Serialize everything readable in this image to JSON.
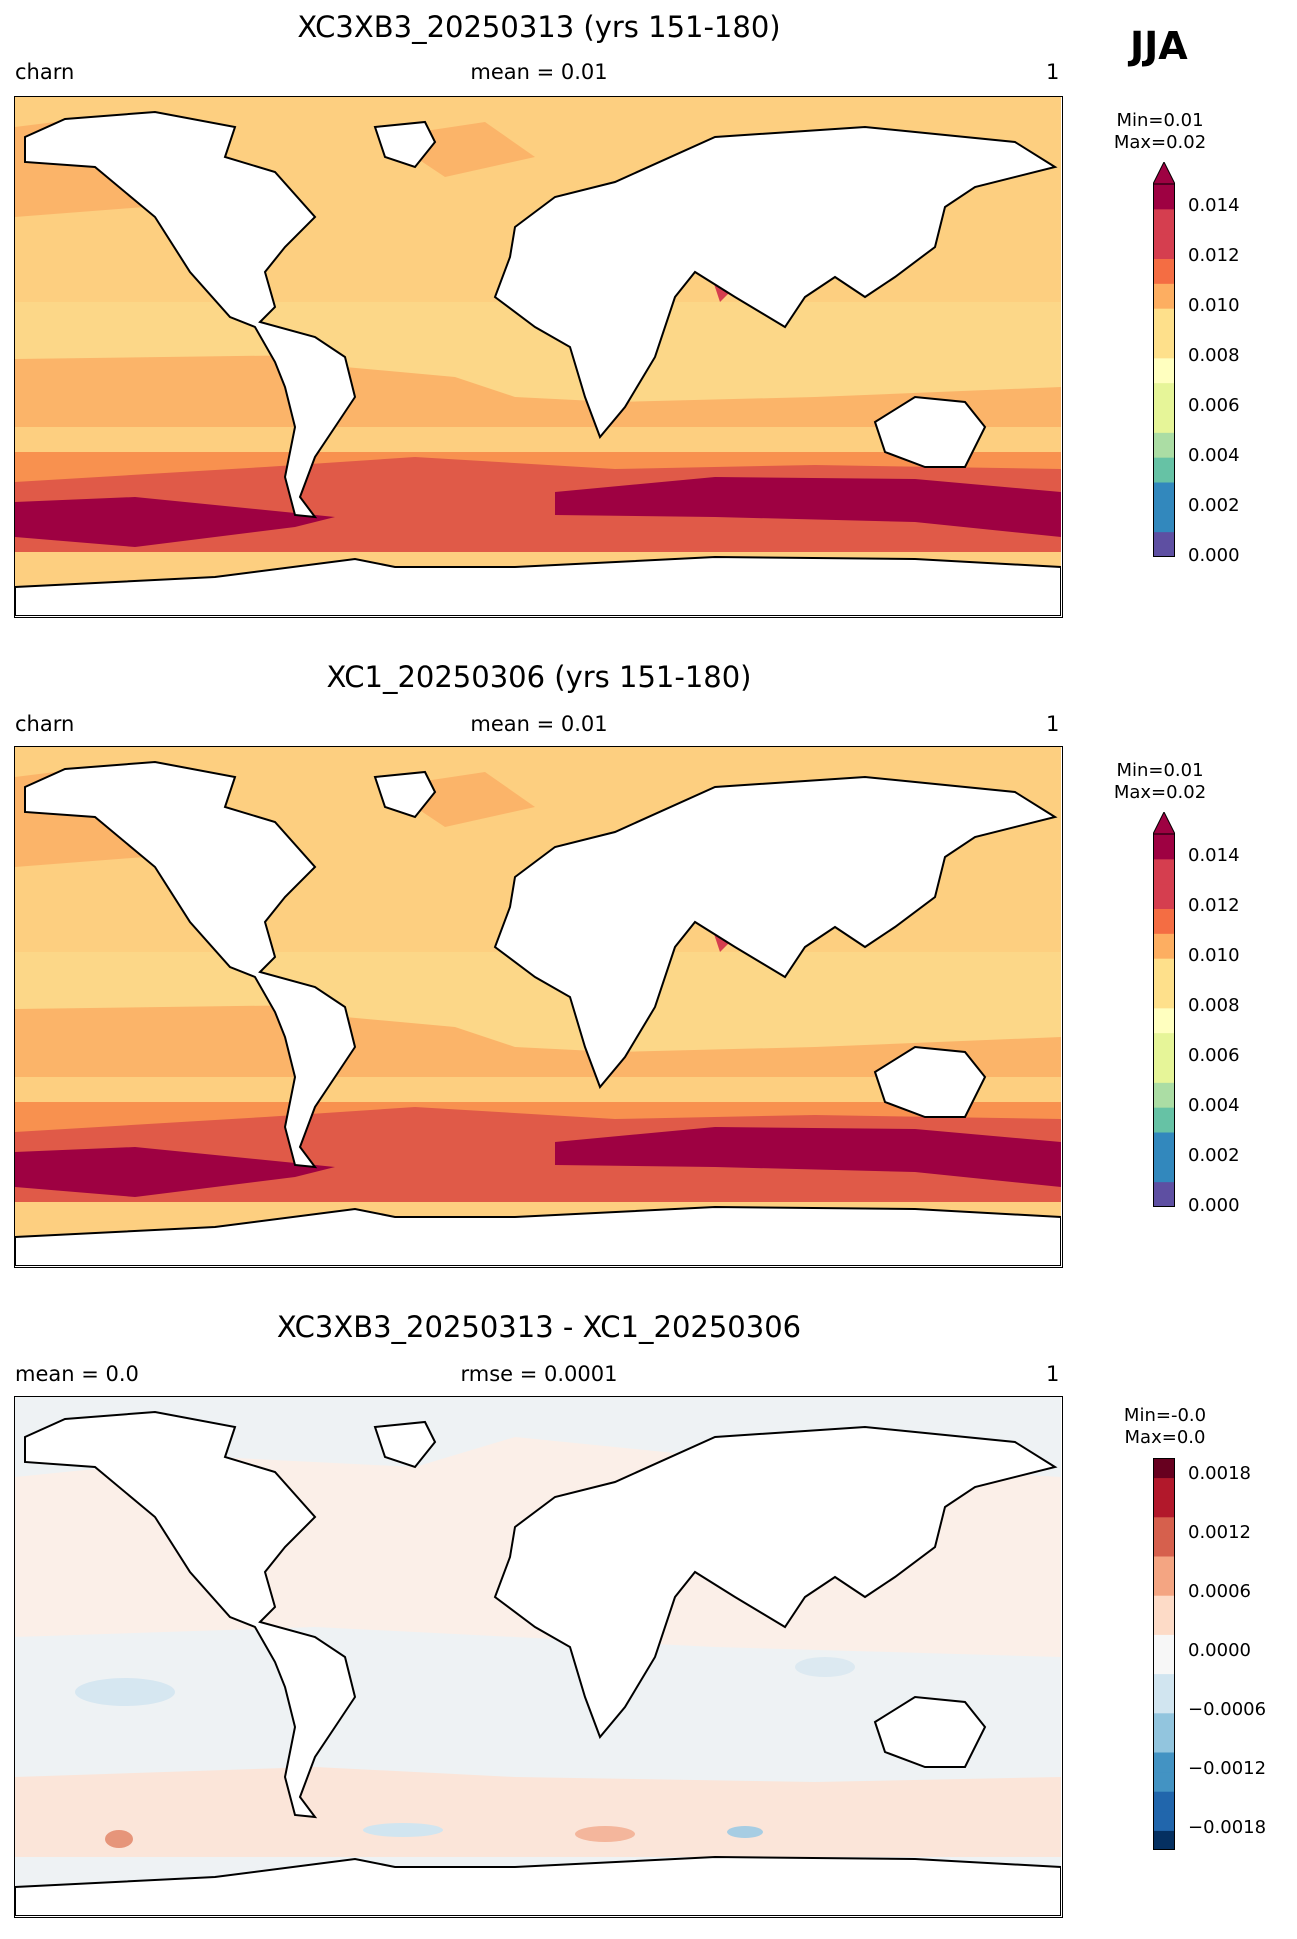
{
  "season": "JJA",
  "colors": {
    "land": "#ffffff",
    "coast": "#000000",
    "ice_white": "#ffffff",
    "rdylbu_r": [
      "#5e4fa2",
      "#3288bd",
      "#66c2a5",
      "#abdda4",
      "#e6f598",
      "#ffffbf",
      "#fee08b",
      "#fdae61",
      "#f46d43",
      "#d53e4f",
      "#9e0142"
    ],
    "rdbu_r": [
      "#053061",
      "#2166ac",
      "#4393c3",
      "#92c5de",
      "#d1e5f0",
      "#f7f7f7",
      "#fddbc7",
      "#f4a582",
      "#d6604d",
      "#b2182b",
      "#67001f"
    ]
  },
  "panels": [
    {
      "title": "XC3XB3_20250313 (yrs 151-180)",
      "left": "charn",
      "center": "mean = 0.01",
      "right": "1",
      "cb_stats": "Min=0.01\nMax=0.02",
      "cb_ticks": [
        "0.014",
        "0.012",
        "0.010",
        "0.008",
        "0.006",
        "0.004",
        "0.002",
        "0.000"
      ]
    },
    {
      "title": "XC1_20250306 (yrs 151-180)",
      "left": "charn",
      "center": "mean = 0.01",
      "right": "1",
      "cb_stats": "Min=0.01\nMax=0.02",
      "cb_ticks": [
        "0.014",
        "0.012",
        "0.010",
        "0.008",
        "0.006",
        "0.004",
        "0.002",
        "0.000"
      ]
    },
    {
      "title": "XC3XB3_20250313 - XC1_20250306",
      "left": "mean = 0.0",
      "center": "rmse = 0.0001",
      "right": "1",
      "cb_stats": "Min=-0.0\nMax=0.0",
      "cb_ticks": [
        "0.0018",
        "0.0012",
        "0.0006",
        "0.0000",
        "−0.0006",
        "−0.0012",
        "−0.0018"
      ]
    }
  ]
}
